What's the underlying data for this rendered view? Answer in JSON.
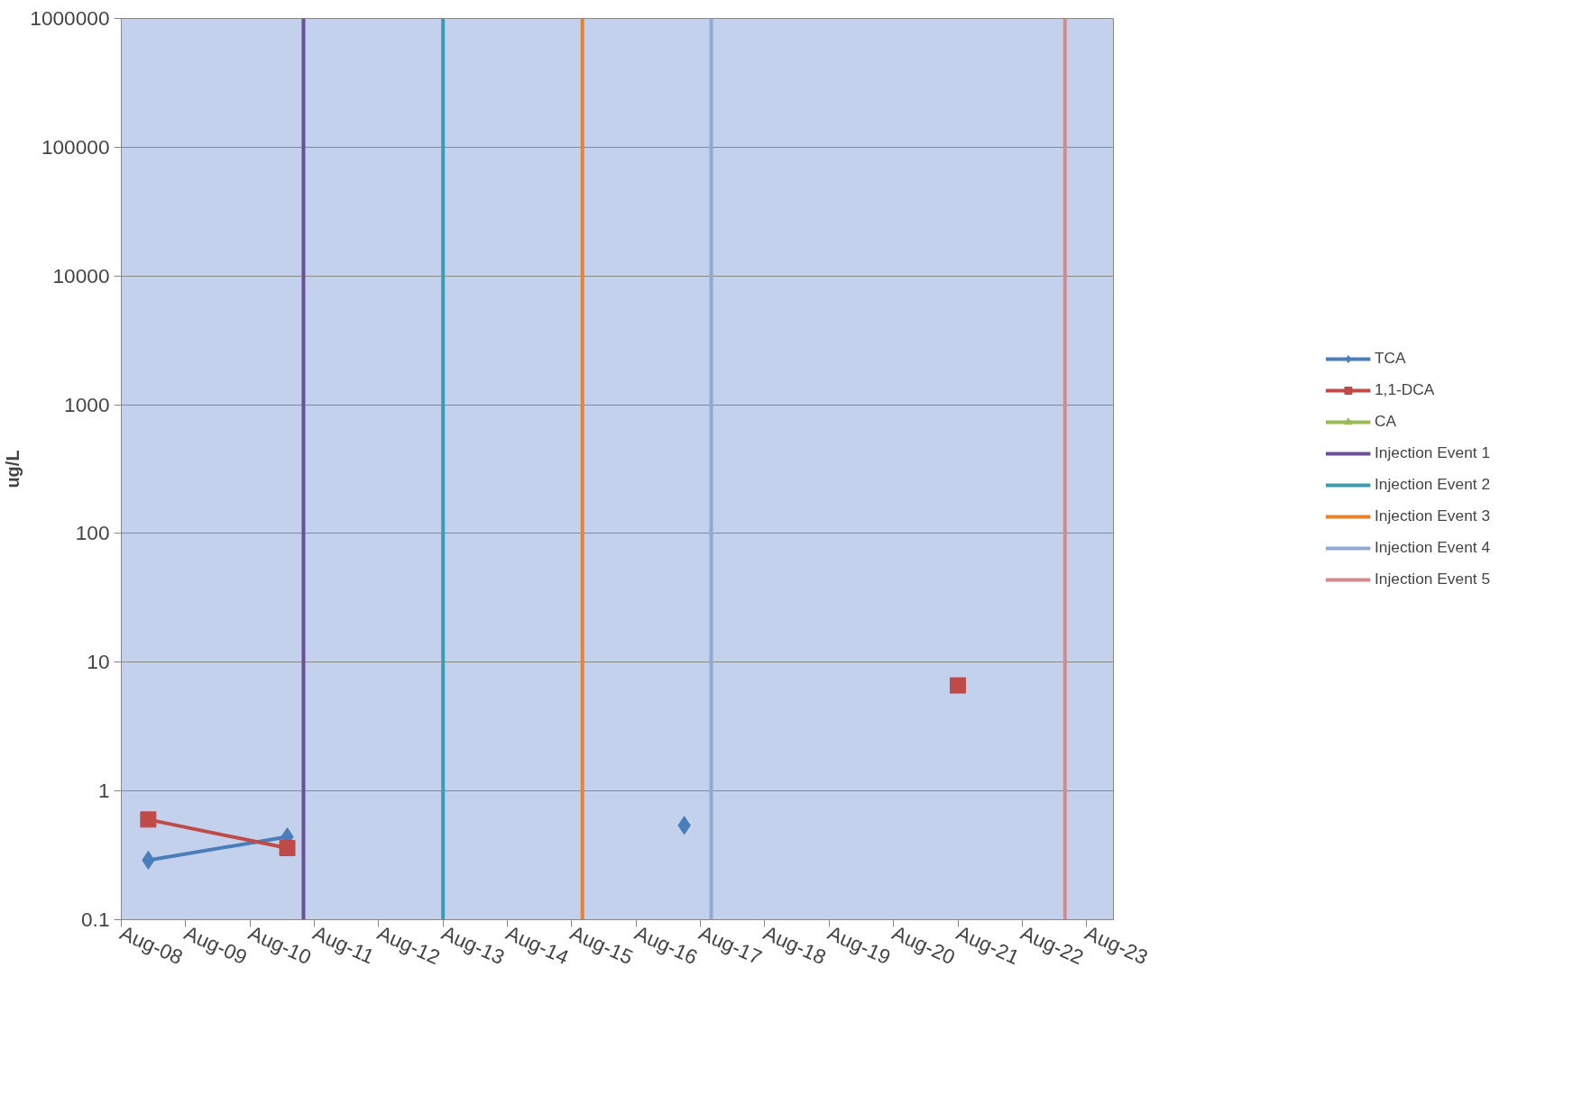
{
  "chart_data": {
    "type": "line",
    "ylabel": "ug/L",
    "log": "y",
    "grid": "y",
    "legend": "right",
    "xlim": [
      "2008-08",
      "2024-01"
    ],
    "ylim": [
      0.1,
      1000000
    ],
    "yticks": [
      0.1,
      1,
      10,
      100,
      1000,
      10000,
      100000,
      1000000
    ],
    "xticks": [
      {
        "value": "2008-08",
        "label": "Aug-08"
      },
      {
        "value": "2009-08",
        "label": "Aug-09"
      },
      {
        "value": "2010-08",
        "label": "Aug-10"
      },
      {
        "value": "2011-08",
        "label": "Aug-11"
      },
      {
        "value": "2012-08",
        "label": "Aug-12"
      },
      {
        "value": "2013-08",
        "label": "Aug-13"
      },
      {
        "value": "2014-08",
        "label": "Aug-14"
      },
      {
        "value": "2015-08",
        "label": "Aug-15"
      },
      {
        "value": "2016-08",
        "label": "Aug-16"
      },
      {
        "value": "2017-08",
        "label": "Aug-17"
      },
      {
        "value": "2018-08",
        "label": "Aug-18"
      },
      {
        "value": "2019-08",
        "label": "Aug-19"
      },
      {
        "value": "2020-08",
        "label": "Aug-20"
      },
      {
        "value": "2021-08",
        "label": "Aug-21"
      },
      {
        "value": "2022-08",
        "label": "Aug-22"
      },
      {
        "value": "2023-08",
        "label": "Aug-23"
      }
    ],
    "series": [
      {
        "name": "TCA",
        "color": "#4a7ebb",
        "marker": "diamond",
        "x": [
          "2009-01",
          "2011-03",
          "2014-01",
          "2017-05"
        ],
        "values": [
          0.29,
          0.44,
          null,
          0.54
        ]
      },
      {
        "name": "1,1-DCA",
        "color": "#be4b48",
        "marker": "square",
        "x": [
          "2009-01",
          "2011-03",
          "2016-01",
          "2021-08"
        ],
        "values": [
          0.6,
          0.36,
          null,
          6.6
        ]
      },
      {
        "name": "CA",
        "color": "#98b954",
        "marker": "triangle"
      },
      {
        "name": "Injection Event 1",
        "color": "#6a5096",
        "marker": "none",
        "x": [
          "2011-06",
          "2011-06"
        ],
        "values": [
          0.1,
          1000000
        ]
      },
      {
        "name": "Injection Event 2",
        "color": "#3a9cb0",
        "marker": "none",
        "x": [
          "2013-08",
          "2013-08"
        ],
        "values": [
          0.1,
          1000000
        ]
      },
      {
        "name": "Injection Event 3",
        "color": "#e8822e",
        "marker": "none",
        "x": [
          "2015-10",
          "2015-10"
        ],
        "values": [
          0.1,
          1000000
        ]
      },
      {
        "name": "Injection Event 4",
        "color": "#92a9d4",
        "marker": "none",
        "x": [
          "2017-10",
          "2017-10"
        ],
        "values": [
          0.1,
          1000000
        ]
      },
      {
        "name": "Injection Event 5",
        "color": "#d48a8a",
        "marker": "none",
        "x": [
          "2023-04",
          "2023-04"
        ],
        "values": [
          0.1,
          1000000
        ]
      }
    ]
  }
}
